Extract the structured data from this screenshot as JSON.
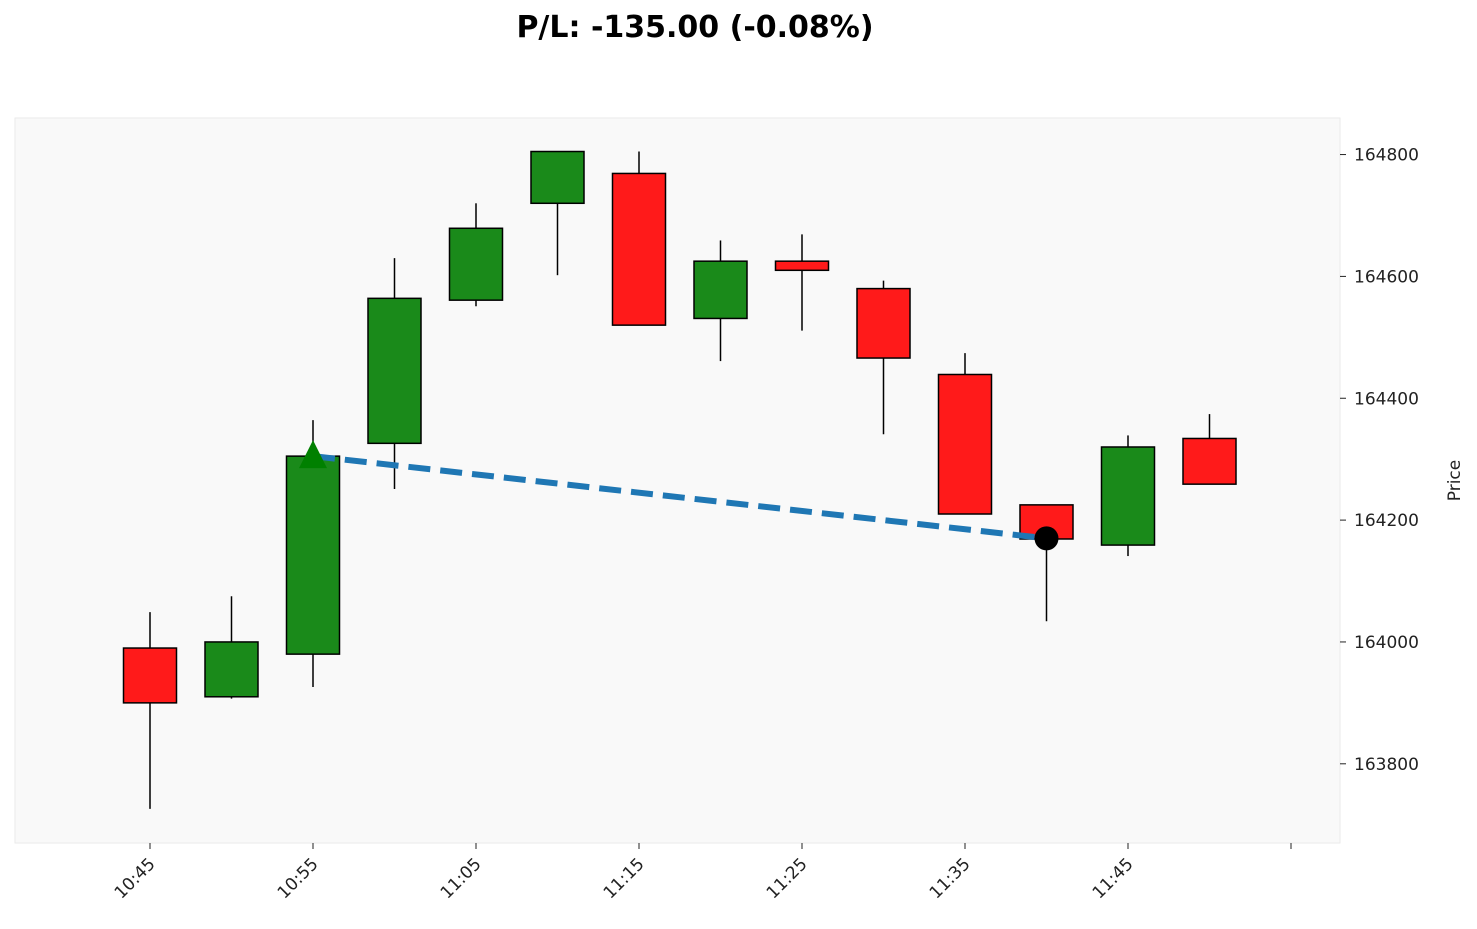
{
  "chart_data": {
    "type": "candlestick",
    "title": "P/L: -135.00 (-0.08%)",
    "ylabel": "Price",
    "xlabel": "",
    "ylim": [
      163670,
      164860
    ],
    "yticks": [
      163800,
      164000,
      164200,
      164400,
      164600,
      164800
    ],
    "xticks": [
      {
        "index": 0,
        "label": "10:45"
      },
      {
        "index": 2,
        "label": "10:55"
      },
      {
        "index": 4,
        "label": "11:05"
      },
      {
        "index": 6,
        "label": "11:15"
      },
      {
        "index": 8,
        "label": "11:25"
      },
      {
        "index": 10,
        "label": "11:35"
      },
      {
        "index": 12,
        "label": "11:45"
      },
      {
        "index": 14,
        "label": ""
      }
    ],
    "candles": [
      {
        "time": "10:45",
        "open": 163990,
        "high": 164049,
        "low": 163726,
        "close": 163900
      },
      {
        "time": "10:50",
        "open": 163910,
        "high": 164075,
        "low": 163907,
        "close": 164000
      },
      {
        "time": "10:55",
        "open": 163980,
        "high": 164364,
        "low": 163926,
        "close": 164305
      },
      {
        "time": "11:00",
        "open": 164326,
        "high": 164630,
        "low": 164251,
        "close": 164564
      },
      {
        "time": "11:05",
        "open": 164561,
        "high": 164720,
        "low": 164551,
        "close": 164679
      },
      {
        "time": "11:10",
        "open": 164720,
        "high": 164805,
        "low": 164602,
        "close": 164805
      },
      {
        "time": "11:15",
        "open": 164769,
        "high": 164805,
        "low": 164520,
        "close": 164520
      },
      {
        "time": "11:20",
        "open": 164531,
        "high": 164659,
        "low": 164461,
        "close": 164625
      },
      {
        "time": "11:25",
        "open": 164625,
        "high": 164669,
        "low": 164511,
        "close": 164610
      },
      {
        "time": "11:30",
        "open": 164580,
        "high": 164593,
        "low": 164341,
        "close": 164466
      },
      {
        "time": "11:35",
        "open": 164439,
        "high": 164474,
        "low": 164210,
        "close": 164210
      },
      {
        "time": "11:40",
        "open": 164225,
        "high": 164225,
        "low": 164034,
        "close": 164169
      },
      {
        "time": "11:45",
        "open": 164159,
        "high": 164339,
        "low": 164141,
        "close": 164320
      },
      {
        "time": "11:50",
        "open": 164334,
        "high": 164374,
        "low": 164259,
        "close": 164259
      }
    ],
    "trade": {
      "entry": {
        "index": 2,
        "price": 164305,
        "marker": "triangle-up"
      },
      "exit": {
        "index": 11,
        "price": 164170,
        "marker": "circle"
      }
    },
    "colors": {
      "up": "#1a8a1a",
      "down": "#ff1a1a",
      "trade_line": "#1f77b4",
      "entry": "#008000",
      "exit": "#000000",
      "plot_bg": "#f9f9f9"
    }
  }
}
